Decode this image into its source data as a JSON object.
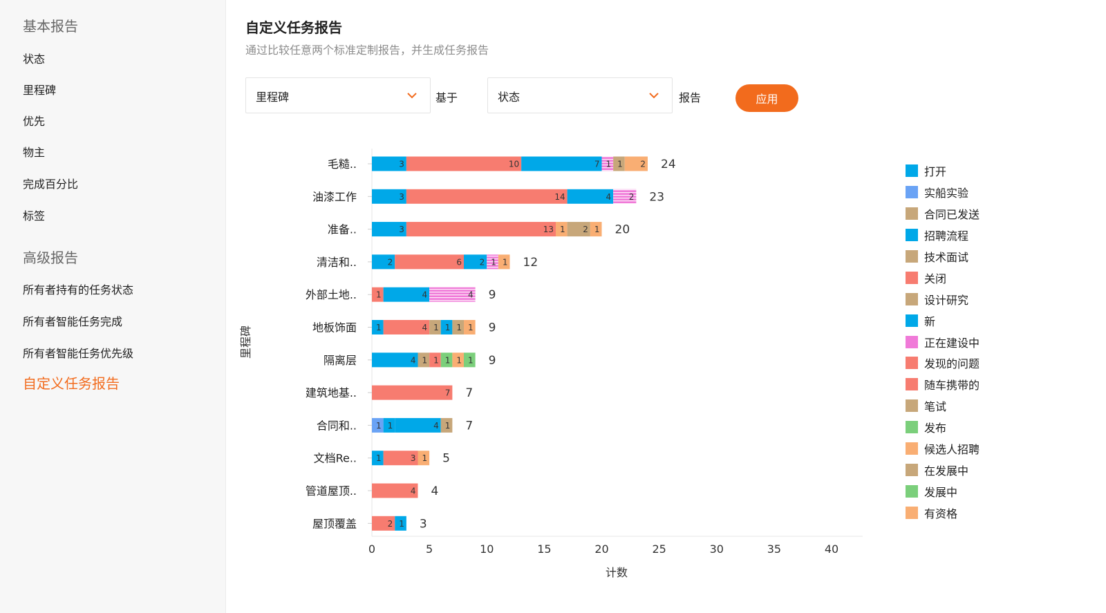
{
  "sidebar": {
    "basic_heading": "基本报告",
    "basic_items": [
      "状态",
      "里程碑",
      "优先",
      "物主",
      "完成百分比",
      "标签"
    ],
    "advanced_heading": "高级报告",
    "advanced_items": [
      "所有者持有的任务状态",
      "所有者智能任务完成",
      "所有者智能任务优先级"
    ],
    "active_item": "自定义任务报告"
  },
  "header": {
    "title": "自定义任务报告",
    "subtitle": "通过比较任意两个标准定制报告，并生成任务报告"
  },
  "controls": {
    "select1_value": "里程碑",
    "based_on_label": "基于",
    "select2_value": "状态",
    "report_label": "报告",
    "apply_label": "应用"
  },
  "colors": {
    "accent": "#f26b1d"
  },
  "chart_data": {
    "type": "bar",
    "orientation": "horizontal",
    "stacked": true,
    "xlabel": "计数",
    "ylabel": "里程碑",
    "xlim": [
      0,
      40
    ],
    "xticks": [
      0,
      5,
      10,
      15,
      20,
      25,
      30,
      35,
      40
    ],
    "legend_position": "right",
    "statuses": [
      {
        "name": "打开",
        "color": "#00a8e8"
      },
      {
        "name": "实船实验",
        "color": "#6aa3f5"
      },
      {
        "name": "合同已发送",
        "color": "#c7a77a"
      },
      {
        "name": "招聘流程",
        "color": "#00a8e8"
      },
      {
        "name": "技术面试",
        "color": "#c7a77a"
      },
      {
        "name": "关闭",
        "color": "#f77c70"
      },
      {
        "name": "设计研究",
        "color": "#c7a77a"
      },
      {
        "name": "新",
        "color": "#00a8e8"
      },
      {
        "name": "正在建设中",
        "color": "#f07ad8",
        "pattern": "stripes"
      },
      {
        "name": "发现的问题",
        "color": "#f77c70"
      },
      {
        "name": "随车携带的",
        "color": "#f77c70"
      },
      {
        "name": "笔试",
        "color": "#c7a77a"
      },
      {
        "name": "发布",
        "color": "#7bcf7b"
      },
      {
        "name": "候选人招聘",
        "color": "#f9ae73"
      },
      {
        "name": "在发展中",
        "color": "#c7a77a"
      },
      {
        "name": "发展中",
        "color": "#7bcf7b"
      },
      {
        "name": "有资格",
        "color": "#f9ae73"
      }
    ],
    "categories": [
      {
        "label": "毛糙..",
        "total": 24,
        "segments": [
          {
            "status": "打开",
            "value": 3
          },
          {
            "status": "关闭",
            "value": 10
          },
          {
            "status": "新",
            "value": 7
          },
          {
            "status": "正在建设中",
            "value": 1
          },
          {
            "status": "设计研究",
            "value": 1
          },
          {
            "status": "候选人招聘",
            "value": 2
          }
        ]
      },
      {
        "label": "油漆工作",
        "total": 23,
        "segments": [
          {
            "status": "打开",
            "value": 3
          },
          {
            "status": "关闭",
            "value": 14
          },
          {
            "status": "新",
            "value": 4
          },
          {
            "status": "正在建设中",
            "value": 2
          }
        ]
      },
      {
        "label": "准备..",
        "total": 20,
        "segments": [
          {
            "status": "打开",
            "value": 3
          },
          {
            "status": "关闭",
            "value": 13
          },
          {
            "status": "候选人招聘",
            "value": 1
          },
          {
            "status": "设计研究",
            "value": 2
          },
          {
            "status": "有资格",
            "value": 1
          }
        ]
      },
      {
        "label": "清洁和..",
        "total": 12,
        "segments": [
          {
            "status": "打开",
            "value": 2
          },
          {
            "status": "关闭",
            "value": 6
          },
          {
            "status": "新",
            "value": 2
          },
          {
            "status": "正在建设中",
            "value": 1
          },
          {
            "status": "有资格",
            "value": 1
          }
        ]
      },
      {
        "label": "外部土地..",
        "total": 9,
        "segments": [
          {
            "status": "关闭",
            "value": 1
          },
          {
            "status": "新",
            "value": 4
          },
          {
            "status": "正在建设中",
            "value": 4
          }
        ]
      },
      {
        "label": "地板饰面",
        "total": 9,
        "segments": [
          {
            "status": "打开",
            "value": 1
          },
          {
            "status": "关闭",
            "value": 4
          },
          {
            "status": "技术面试",
            "value": 1
          },
          {
            "status": "新",
            "value": 1
          },
          {
            "status": "设计研究",
            "value": 1
          },
          {
            "status": "有资格",
            "value": 1
          }
        ]
      },
      {
        "label": "隔离层",
        "total": 9,
        "segments": [
          {
            "status": "打开",
            "value": 4
          },
          {
            "status": "技术面试",
            "value": 1
          },
          {
            "status": "关闭",
            "value": 1
          },
          {
            "status": "发布",
            "value": 1
          },
          {
            "status": "有资格",
            "value": 1
          },
          {
            "status": "发展中",
            "value": 1
          }
        ]
      },
      {
        "label": "建筑地基..",
        "total": 7,
        "segments": [
          {
            "status": "关闭",
            "value": 7
          }
        ]
      },
      {
        "label": "合同和..",
        "total": 7,
        "segments": [
          {
            "status": "实船实验",
            "value": 1
          },
          {
            "status": "打开",
            "value": 1
          },
          {
            "status": "新",
            "value": 4
          },
          {
            "status": "设计研究",
            "value": 1
          }
        ]
      },
      {
        "label": "文档Re..",
        "total": 5,
        "segments": [
          {
            "status": "打开",
            "value": 1
          },
          {
            "status": "关闭",
            "value": 3
          },
          {
            "status": "有资格",
            "value": 1
          }
        ]
      },
      {
        "label": "管道屋顶..",
        "total": 4,
        "segments": [
          {
            "status": "关闭",
            "value": 4
          }
        ]
      },
      {
        "label": "屋顶覆盖",
        "total": 3,
        "segments": [
          {
            "status": "关闭",
            "value": 2
          },
          {
            "status": "新",
            "value": 1
          }
        ]
      }
    ]
  }
}
